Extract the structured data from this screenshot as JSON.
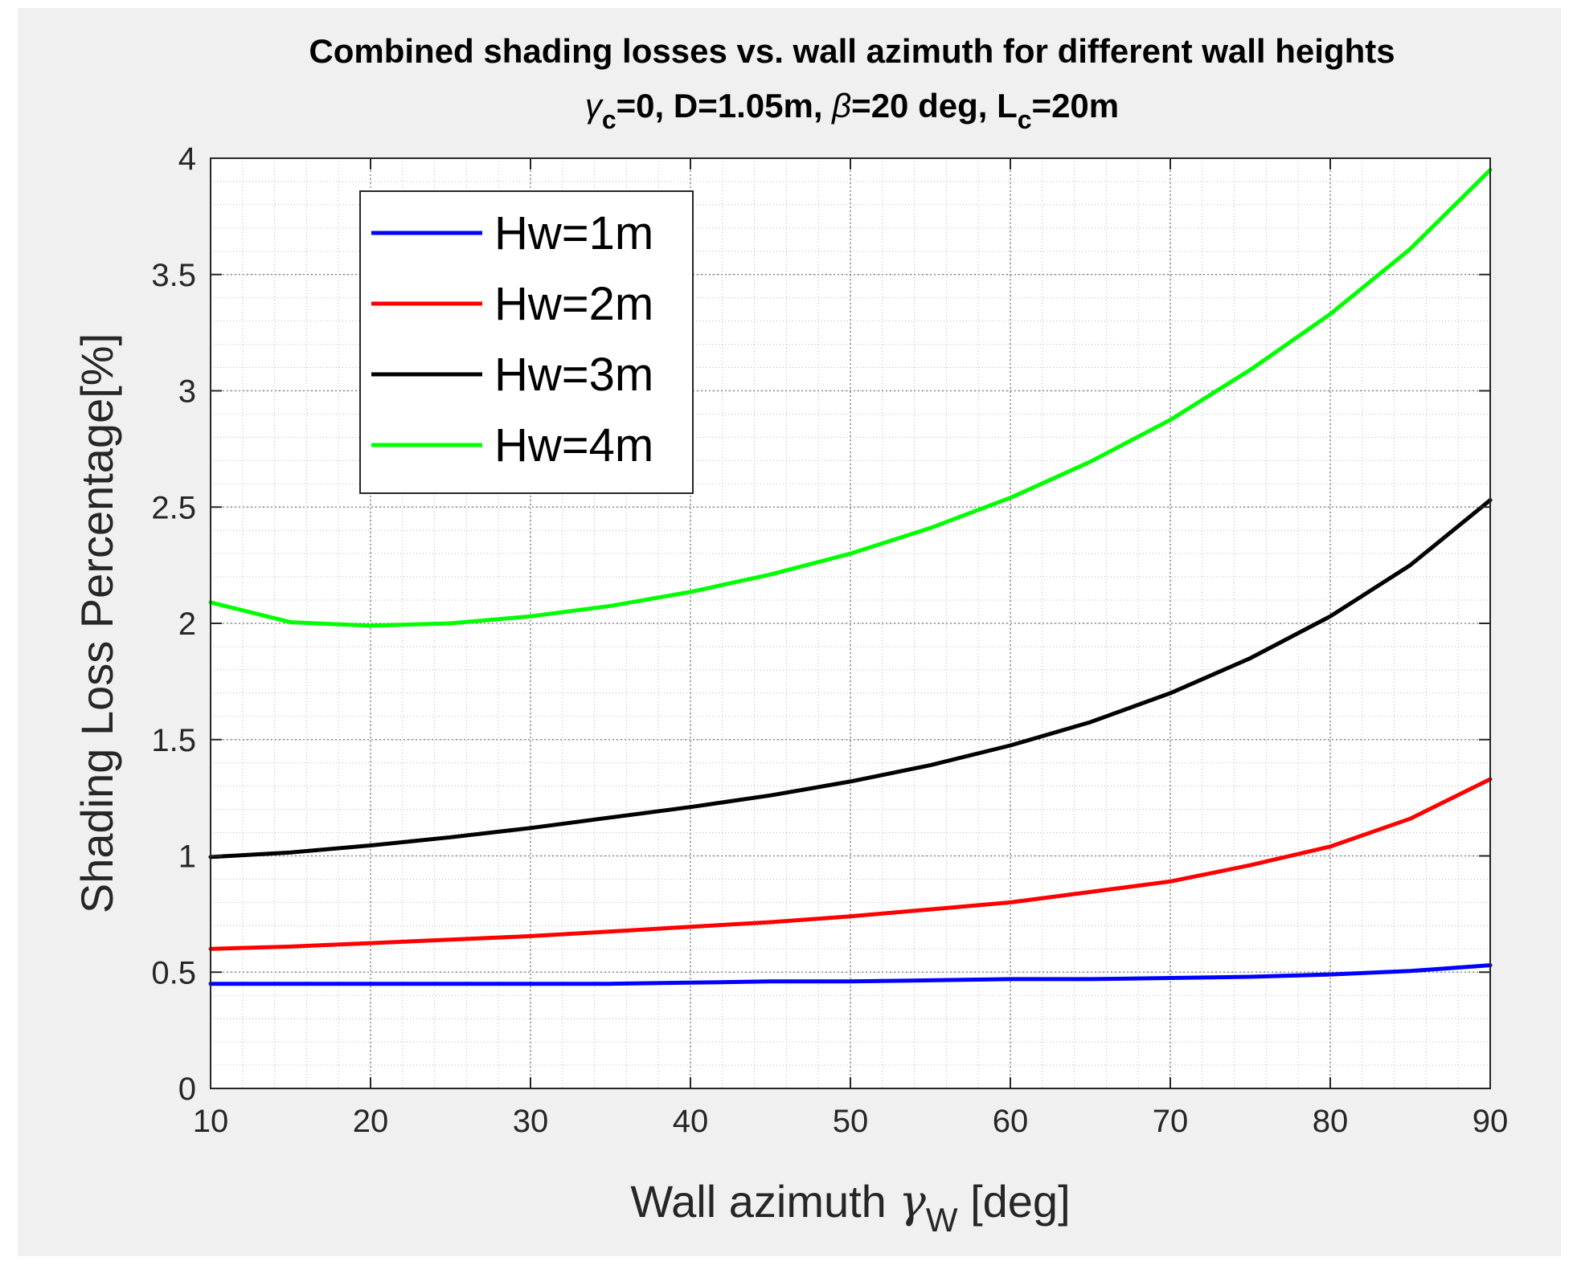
{
  "chart_data": {
    "type": "line",
    "title": "Combined shading losses vs. wall azimuth for different wall heights",
    "subtitle": {
      "gamma_symbol": "γ",
      "gamma_sub": "c",
      "part1": "=0, D=1.05m, ",
      "beta_symbol": "β",
      "part2": "=20 deg, L",
      "l_sub": "c",
      "part3": "=20m"
    },
    "xlabel": {
      "prefix": "Wall azimuth ",
      "symbol": "γ",
      "sub": "W",
      "suffix": " [deg]"
    },
    "ylabel": "Shading Loss Percentage[%]",
    "xlim": [
      10,
      90
    ],
    "ylim": [
      0,
      4
    ],
    "xticks": [
      10,
      20,
      30,
      40,
      50,
      60,
      70,
      80,
      90
    ],
    "yticks": [
      0,
      0.5,
      1,
      1.5,
      2,
      2.5,
      3,
      3.5,
      4
    ],
    "ytick_labels": [
      "0",
      "0.5",
      "1",
      "1.5",
      "2",
      "2.5",
      "3",
      "3.5",
      "4"
    ],
    "grid": true,
    "minor_grid": true,
    "legend_position": "top-left",
    "x": [
      10,
      15,
      20,
      25,
      30,
      35,
      40,
      45,
      50,
      55,
      60,
      65,
      70,
      75,
      80,
      85,
      90
    ],
    "series": [
      {
        "name": "Hw=1m",
        "color": "#0000ff",
        "values": [
          0.45,
          0.45,
          0.45,
          0.45,
          0.45,
          0.45,
          0.455,
          0.46,
          0.46,
          0.465,
          0.47,
          0.47,
          0.475,
          0.48,
          0.49,
          0.505,
          0.53
        ]
      },
      {
        "name": "Hw=2m",
        "color": "#ff0000",
        "values": [
          0.6,
          0.61,
          0.625,
          0.64,
          0.655,
          0.675,
          0.695,
          0.715,
          0.74,
          0.77,
          0.8,
          0.845,
          0.89,
          0.96,
          1.04,
          1.16,
          1.33
        ]
      },
      {
        "name": "Hw=3m",
        "color": "#000000",
        "values": [
          0.995,
          1.015,
          1.045,
          1.08,
          1.12,
          1.165,
          1.21,
          1.26,
          1.32,
          1.39,
          1.475,
          1.575,
          1.7,
          1.85,
          2.03,
          2.25,
          2.53
        ]
      },
      {
        "name": "Hw=4m",
        "color": "#00ff00",
        "values": [
          2.09,
          2.005,
          1.99,
          2.0,
          2.03,
          2.075,
          2.135,
          2.21,
          2.3,
          2.41,
          2.54,
          2.695,
          2.875,
          3.09,
          3.33,
          3.61,
          3.95
        ]
      }
    ]
  }
}
